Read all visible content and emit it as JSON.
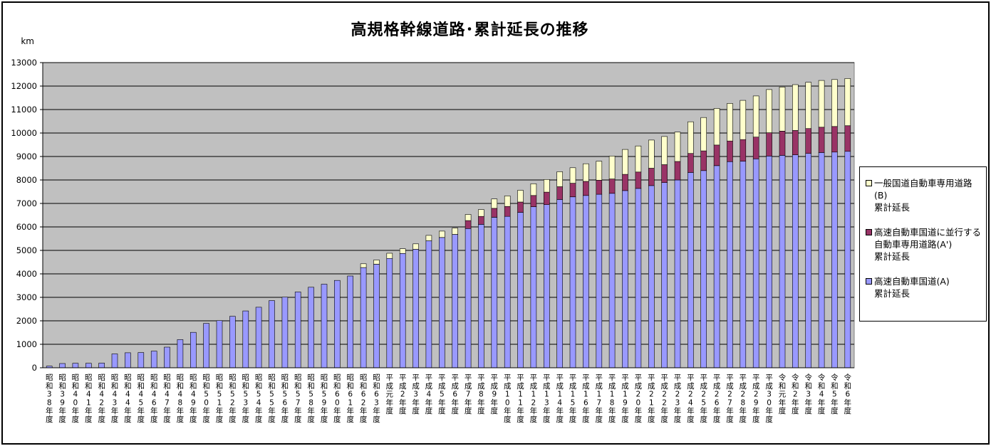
{
  "colors": {
    "plot_bg": "#c0c0c0",
    "series_a": "#9999ff",
    "series_a_prime": "#993366",
    "series_b": "#ffffcc",
    "bar_edge": "#000000",
    "grid": "#000000"
  },
  "chart_data": {
    "type": "bar",
    "stacked": true,
    "title": "高規格幹線道路･累計延長の推移",
    "ylabel": "km",
    "xlabel": "",
    "ylim": [
      0,
      13000
    ],
    "yticks": [
      0,
      1000,
      2000,
      3000,
      4000,
      5000,
      6000,
      7000,
      8000,
      9000,
      10000,
      11000,
      12000,
      13000
    ],
    "grid": true,
    "legend_position": "right",
    "categories": [
      "昭和38年度",
      "昭和39年度",
      "昭和40年度",
      "昭和41年度",
      "昭和42年度",
      "昭和43年度",
      "昭和44年度",
      "昭和45年度",
      "昭和46年度",
      "昭和47年度",
      "昭和48年度",
      "昭和49年度",
      "昭和50年度",
      "昭和51年度",
      "昭和52年度",
      "昭和53年度",
      "昭和54年度",
      "昭和55年度",
      "昭和56年度",
      "昭和57年度",
      "昭和58年度",
      "昭和59年度",
      "昭和60年度",
      "昭和61年度",
      "昭和62年度",
      "昭和63年度",
      "平成元年度",
      "平成2年度",
      "平成3年度",
      "平成4年度",
      "平成5年度",
      "平成6年度",
      "平成7年度",
      "平成8年度",
      "平成9年度",
      "平成10年度",
      "平成11年度",
      "平成12年度",
      "平成13年度",
      "平成14年度",
      "平成15年度",
      "平成16年度",
      "平成17年度",
      "平成18年度",
      "平成19年度",
      "平成20年度",
      "平成21年度",
      "平成22年度",
      "平成23年度",
      "平成24年度",
      "平成25年度",
      "平成26年度",
      "平成27年度",
      "平成28年度",
      "平成29年度",
      "平成30年度",
      "令和元年度",
      "令和2年度",
      "令和3年度",
      "令和4年度",
      "令和5年度",
      "令和6年度"
    ],
    "series": [
      {
        "name": "高速自動車国道(A) 累計延長",
        "legend_lines": [
          "高速自動車国道(A)",
          "累計延長"
        ],
        "color": "#9999ff",
        "values": [
          71,
          181,
          190,
          190,
          200,
          590,
          640,
          650,
          710,
          880,
          1200,
          1510,
          1890,
          2010,
          2190,
          2420,
          2580,
          2860,
          3010,
          3230,
          3430,
          3560,
          3720,
          3910,
          4270,
          4410,
          4660,
          4870,
          5050,
          5410,
          5550,
          5680,
          5930,
          6110,
          6410,
          6450,
          6620,
          6860,
          6950,
          7170,
          7280,
          7340,
          7390,
          7430,
          7550,
          7640,
          7760,
          7890,
          8000,
          8320,
          8400,
          8610,
          8780,
          8800,
          8900,
          9020,
          9050,
          9070,
          9130,
          9170,
          9190,
          9220
        ]
      },
      {
        "name": "高速自動車国道に並行する自動車専用道路(A') 累計延長",
        "legend_lines": [
          "高速自動車国道に並行する",
          "自動車専用道路(A')",
          "累計延長"
        ],
        "color": "#993366",
        "values": [
          0,
          0,
          0,
          0,
          0,
          0,
          0,
          0,
          0,
          0,
          0,
          0,
          0,
          0,
          0,
          0,
          0,
          0,
          0,
          0,
          0,
          0,
          0,
          0,
          0,
          0,
          0,
          0,
          0,
          0,
          0,
          0,
          340,
          340,
          380,
          420,
          440,
          480,
          530,
          540,
          580,
          600,
          600,
          610,
          690,
          700,
          740,
          760,
          790,
          810,
          840,
          880,
          880,
          920,
          930,
          990,
          1030,
          1040,
          1060,
          1080,
          1090,
          1090
        ]
      },
      {
        "name": "一般国道自動車専用道路(B) 累計延長",
        "legend_lines": [
          "一般国道自動車専用道路",
          "(B)",
          "累計延長"
        ],
        "color": "#ffffcc",
        "values": [
          0,
          0,
          0,
          0,
          0,
          0,
          0,
          0,
          0,
          0,
          0,
          0,
          0,
          0,
          0,
          0,
          0,
          0,
          0,
          0,
          0,
          0,
          0,
          0,
          160,
          180,
          220,
          200,
          230,
          230,
          270,
          270,
          260,
          290,
          400,
          450,
          500,
          500,
          540,
          640,
          660,
          750,
          810,
          980,
          1060,
          1110,
          1200,
          1200,
          1250,
          1350,
          1420,
          1560,
          1600,
          1670,
          1750,
          1840,
          1880,
          1950,
          1970,
          1990,
          2000,
          2010
        ]
      }
    ]
  }
}
